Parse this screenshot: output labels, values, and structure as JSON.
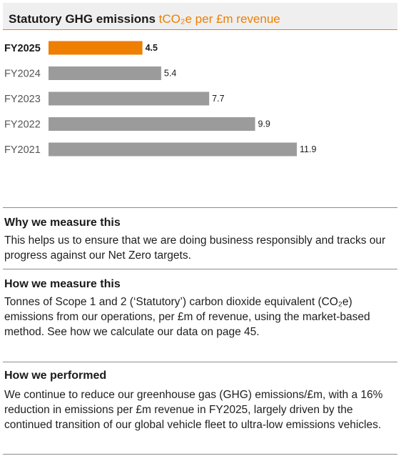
{
  "header": {
    "title": "Statutory GHG emissions",
    "subtitle": "tCO₂e per £m revenue"
  },
  "chart_data": {
    "type": "bar",
    "orientation": "horizontal",
    "categories": [
      "FY2025",
      "FY2024",
      "FY2023",
      "FY2022",
      "FY2021"
    ],
    "values": [
      4.5,
      5.4,
      7.7,
      9.9,
      11.9
    ],
    "highlight": "FY2025",
    "colors": {
      "highlight": "#ee7f00",
      "default": "#9b9b9b"
    },
    "title": "Statutory GHG emissions",
    "subtitle": "tCO₂e per £m revenue",
    "xlabel": "",
    "ylabel": "",
    "grid": false,
    "legend": "none"
  },
  "sections": [
    {
      "heading": "Why we measure this",
      "body": "This helps us to ensure that we are doing business responsibly and tracks our progress against our Net Zero targets."
    },
    {
      "heading": "How we measure this",
      "body": "Tonnes of Scope 1 and 2 (‘Statutory’) carbon dioxide equivalent (CO₂e) emissions from our operations, per £m of revenue, using the market-based method. See how we calculate our data on page 45."
    },
    {
      "heading": "How we performed",
      "body": "We continue to reduce our greenhouse gas (GHG) emissions/£m, with a 16% reduction in emissions per £m revenue in FY2025, largely driven by the continued transition of our global vehicle fleet to ultra-low emissions vehicles."
    }
  ]
}
